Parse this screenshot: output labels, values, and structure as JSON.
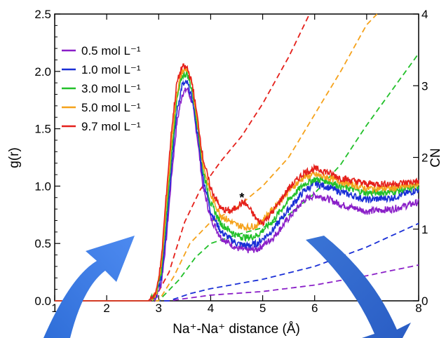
{
  "chart_data": {
    "type": "line",
    "title": "",
    "xlabel": "Na⁺-Na⁺ distance (Å)",
    "ylabel": "g(r)",
    "ylabel_right": "CN",
    "xlim": [
      1,
      8
    ],
    "ylim": [
      0,
      2.5
    ],
    "ylim_right": [
      0,
      4
    ],
    "x_ticks": [
      1,
      2,
      3,
      4,
      5,
      6,
      7,
      8
    ],
    "y_ticks": [
      "0.0",
      "0.5",
      "1.0",
      "1.5",
      "2.0",
      "2.5"
    ],
    "y_ticks_right": [
      "0",
      "1",
      "2",
      "3",
      "4"
    ],
    "grid": false,
    "legend_position": "top-left",
    "annotation": "*",
    "annotation_at": [
      4.6,
      0.85
    ],
    "series": [
      {
        "name": "0.5 mol L⁻¹",
        "color": "#8a1fc8",
        "gr": [
          [
            1,
            0
          ],
          [
            2.8,
            0
          ],
          [
            2.95,
            0.03
          ],
          [
            3.05,
            0.15
          ],
          [
            3.15,
            0.55
          ],
          [
            3.25,
            1.1
          ],
          [
            3.35,
            1.55
          ],
          [
            3.45,
            1.8
          ],
          [
            3.55,
            1.85
          ],
          [
            3.65,
            1.72
          ],
          [
            3.75,
            1.4
          ],
          [
            3.85,
            1.0
          ],
          [
            4.0,
            0.72
          ],
          [
            4.2,
            0.55
          ],
          [
            4.5,
            0.46
          ],
          [
            4.7,
            0.44
          ],
          [
            4.9,
            0.45
          ],
          [
            5.2,
            0.55
          ],
          [
            5.5,
            0.72
          ],
          [
            5.8,
            0.88
          ],
          [
            6.0,
            0.92
          ],
          [
            6.2,
            0.9
          ],
          [
            6.5,
            0.84
          ],
          [
            7.0,
            0.78
          ],
          [
            7.5,
            0.8
          ],
          [
            8.0,
            0.86
          ]
        ],
        "cn": [
          [
            1,
            0
          ],
          [
            3.2,
            0
          ],
          [
            3.6,
            0.04
          ],
          [
            4.0,
            0.08
          ],
          [
            5.0,
            0.13
          ],
          [
            6.0,
            0.22
          ],
          [
            7.0,
            0.35
          ],
          [
            8.0,
            0.5
          ]
        ]
      },
      {
        "name": "1.0 mol L⁻¹",
        "color": "#1a2fd6",
        "gr": [
          [
            1,
            0
          ],
          [
            2.8,
            0
          ],
          [
            2.95,
            0.04
          ],
          [
            3.05,
            0.2
          ],
          [
            3.15,
            0.65
          ],
          [
            3.25,
            1.2
          ],
          [
            3.35,
            1.65
          ],
          [
            3.45,
            1.88
          ],
          [
            3.55,
            1.9
          ],
          [
            3.65,
            1.75
          ],
          [
            3.75,
            1.45
          ],
          [
            3.85,
            1.08
          ],
          [
            4.0,
            0.78
          ],
          [
            4.2,
            0.6
          ],
          [
            4.5,
            0.5
          ],
          [
            4.7,
            0.48
          ],
          [
            4.9,
            0.5
          ],
          [
            5.2,
            0.62
          ],
          [
            5.5,
            0.8
          ],
          [
            5.8,
            0.96
          ],
          [
            6.0,
            1.02
          ],
          [
            6.2,
            1.0
          ],
          [
            6.5,
            0.95
          ],
          [
            7.0,
            0.88
          ],
          [
            7.5,
            0.9
          ],
          [
            8.0,
            0.97
          ]
        ],
        "cn": [
          [
            1,
            0
          ],
          [
            3.2,
            0
          ],
          [
            3.6,
            0.1
          ],
          [
            4.0,
            0.17
          ],
          [
            5.0,
            0.3
          ],
          [
            6.0,
            0.48
          ],
          [
            7.0,
            0.75
          ],
          [
            8.0,
            1.08
          ]
        ]
      },
      {
        "name": "3.0 mol L⁻¹",
        "color": "#22c02a",
        "gr": [
          [
            1,
            0
          ],
          [
            2.8,
            0
          ],
          [
            2.95,
            0.05
          ],
          [
            3.05,
            0.25
          ],
          [
            3.15,
            0.75
          ],
          [
            3.25,
            1.3
          ],
          [
            3.35,
            1.75
          ],
          [
            3.45,
            1.96
          ],
          [
            3.55,
            1.98
          ],
          [
            3.65,
            1.82
          ],
          [
            3.75,
            1.52
          ],
          [
            3.85,
            1.15
          ],
          [
            4.0,
            0.85
          ],
          [
            4.2,
            0.67
          ],
          [
            4.5,
            0.57
          ],
          [
            4.7,
            0.55
          ],
          [
            4.9,
            0.57
          ],
          [
            5.2,
            0.7
          ],
          [
            5.5,
            0.88
          ],
          [
            5.8,
            1.02
          ],
          [
            6.0,
            1.06
          ],
          [
            6.2,
            1.05
          ],
          [
            6.5,
            1.0
          ],
          [
            7.0,
            0.94
          ],
          [
            7.5,
            0.95
          ],
          [
            8.0,
            1.0
          ]
        ],
        "cn": [
          [
            1,
            0
          ],
          [
            3.0,
            0
          ],
          [
            3.4,
            0.3
          ],
          [
            3.7,
            0.6
          ],
          [
            4.0,
            0.8
          ],
          [
            4.5,
            0.92
          ],
          [
            5.0,
            1.02
          ],
          [
            5.5,
            1.2
          ],
          [
            6.0,
            1.5
          ],
          [
            6.5,
            1.9
          ],
          [
            7.0,
            2.45
          ],
          [
            7.5,
            2.95
          ],
          [
            8.0,
            3.45
          ]
        ]
      },
      {
        "name": "5.0 mol L⁻¹",
        "color": "#f5a21b",
        "gr": [
          [
            1,
            0
          ],
          [
            2.8,
            0
          ],
          [
            2.95,
            0.06
          ],
          [
            3.05,
            0.3
          ],
          [
            3.15,
            0.85
          ],
          [
            3.25,
            1.4
          ],
          [
            3.35,
            1.82
          ],
          [
            3.45,
            2.0
          ],
          [
            3.55,
            2.02
          ],
          [
            3.65,
            1.86
          ],
          [
            3.75,
            1.56
          ],
          [
            3.85,
            1.2
          ],
          [
            4.0,
            0.92
          ],
          [
            4.2,
            0.74
          ],
          [
            4.5,
            0.66
          ],
          [
            4.7,
            0.64
          ],
          [
            4.9,
            0.66
          ],
          [
            5.2,
            0.8
          ],
          [
            5.5,
            0.96
          ],
          [
            5.8,
            1.08
          ],
          [
            6.0,
            1.1
          ],
          [
            6.2,
            1.08
          ],
          [
            6.5,
            1.04
          ],
          [
            7.0,
            0.98
          ],
          [
            7.5,
            0.98
          ],
          [
            8.0,
            1.02
          ]
        ],
        "cn": [
          [
            1,
            0
          ],
          [
            3.0,
            0
          ],
          [
            3.3,
            0.35
          ],
          [
            3.6,
            0.8
          ],
          [
            4.0,
            1.1
          ],
          [
            4.5,
            1.3
          ],
          [
            5.0,
            1.6
          ],
          [
            5.5,
            2.0
          ],
          [
            6.0,
            2.6
          ],
          [
            6.5,
            3.2
          ],
          [
            7.0,
            3.85
          ],
          [
            7.2,
            4.0
          ]
        ]
      },
      {
        "name": "9.7 mol L⁻¹",
        "color": "#e5201b",
        "gr": [
          [
            1,
            0
          ],
          [
            2.8,
            0
          ],
          [
            2.95,
            0.07
          ],
          [
            3.05,
            0.35
          ],
          [
            3.15,
            0.95
          ],
          [
            3.25,
            1.5
          ],
          [
            3.35,
            1.9
          ],
          [
            3.45,
            2.04
          ],
          [
            3.55,
            2.03
          ],
          [
            3.65,
            1.88
          ],
          [
            3.75,
            1.58
          ],
          [
            3.85,
            1.25
          ],
          [
            4.0,
            0.98
          ],
          [
            4.2,
            0.8
          ],
          [
            4.4,
            0.78
          ],
          [
            4.55,
            0.84
          ],
          [
            4.65,
            0.86
          ],
          [
            4.75,
            0.8
          ],
          [
            4.9,
            0.7
          ],
          [
            5.0,
            0.68
          ],
          [
            5.2,
            0.78
          ],
          [
            5.5,
            0.98
          ],
          [
            5.8,
            1.12
          ],
          [
            6.0,
            1.15
          ],
          [
            6.2,
            1.13
          ],
          [
            6.5,
            1.07
          ],
          [
            7.0,
            1.02
          ],
          [
            7.5,
            1.02
          ],
          [
            8.0,
            1.04
          ]
        ],
        "cn": [
          [
            1,
            0
          ],
          [
            2.9,
            0
          ],
          [
            3.2,
            0.4
          ],
          [
            3.5,
            1.1
          ],
          [
            3.8,
            1.55
          ],
          [
            4.2,
            1.95
          ],
          [
            4.6,
            2.3
          ],
          [
            5.0,
            2.75
          ],
          [
            5.5,
            3.4
          ],
          [
            5.9,
            4.0
          ]
        ]
      }
    ]
  }
}
